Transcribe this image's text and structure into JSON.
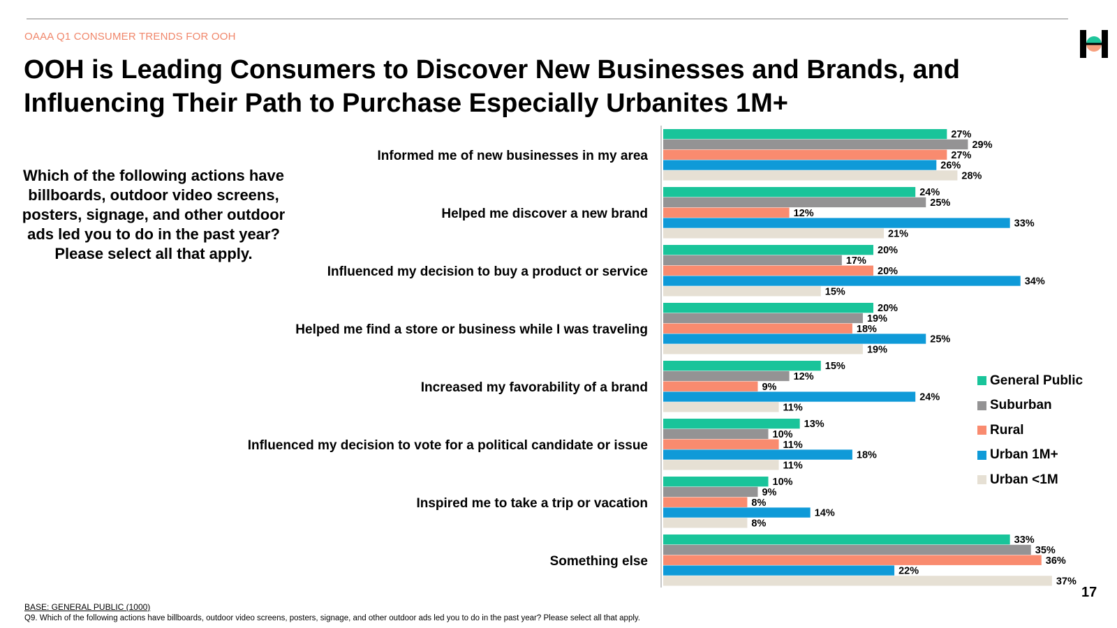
{
  "header": {
    "eyebrow": "OAAA Q1 CONSUMER TRENDS FOR OOH",
    "title": "OOH is Leading Consumers to Discover New Businesses and Brands, and Influencing Their Path to Purchase Especially Urbanites 1M+"
  },
  "question": "Which of the following actions have billboards, outdoor video screens, posters, signage, and other outdoor ads led you to do in the past year? Please select all that apply.",
  "footer": {
    "base": "BASE: GENERAL PUBLIC (1000)",
    "q9": "Q9. Which of the following actions have billboards, outdoor video screens, posters, signage, and other outdoor ads led you to do in the past year? Please select all that apply.",
    "page_number": "17"
  },
  "logo": {
    "icon": "brand-logo-icon",
    "colors": [
      "#000000",
      "#1fc59b",
      "#f7a07e"
    ]
  },
  "chart_data": {
    "type": "bar",
    "orientation": "horizontal",
    "title": "",
    "xlabel": "",
    "ylabel": "",
    "xlim": [
      0,
      37
    ],
    "grid": false,
    "legend_position": "right",
    "value_format": "percent",
    "categories": [
      "Informed me of new businesses in my area",
      "Helped me discover a new brand",
      "Influenced my decision to buy a product or service",
      "Helped me find a store or business while I was traveling",
      "Increased my favorability of a brand",
      "Influenced my decision to vote for a political candidate or issue",
      "Inspired me to take a trip or vacation",
      "Something else"
    ],
    "series": [
      {
        "name": "General Public",
        "color": "#19c49a",
        "values": [
          27,
          24,
          20,
          20,
          15,
          13,
          10,
          33
        ]
      },
      {
        "name": "Suburban",
        "color": "#949394",
        "values": [
          29,
          25,
          17,
          19,
          12,
          10,
          9,
          35
        ]
      },
      {
        "name": "Rural",
        "color": "#f98b6f",
        "values": [
          27,
          12,
          20,
          18,
          9,
          11,
          8,
          36
        ]
      },
      {
        "name": "Urban 1M+",
        "color": "#0f9ad8",
        "values": [
          26,
          33,
          34,
          25,
          24,
          18,
          14,
          22
        ]
      },
      {
        "name": "Urban <1M",
        "color": "#e6e0d4",
        "values": [
          28,
          21,
          15,
          19,
          11,
          11,
          8,
          37
        ]
      }
    ]
  }
}
